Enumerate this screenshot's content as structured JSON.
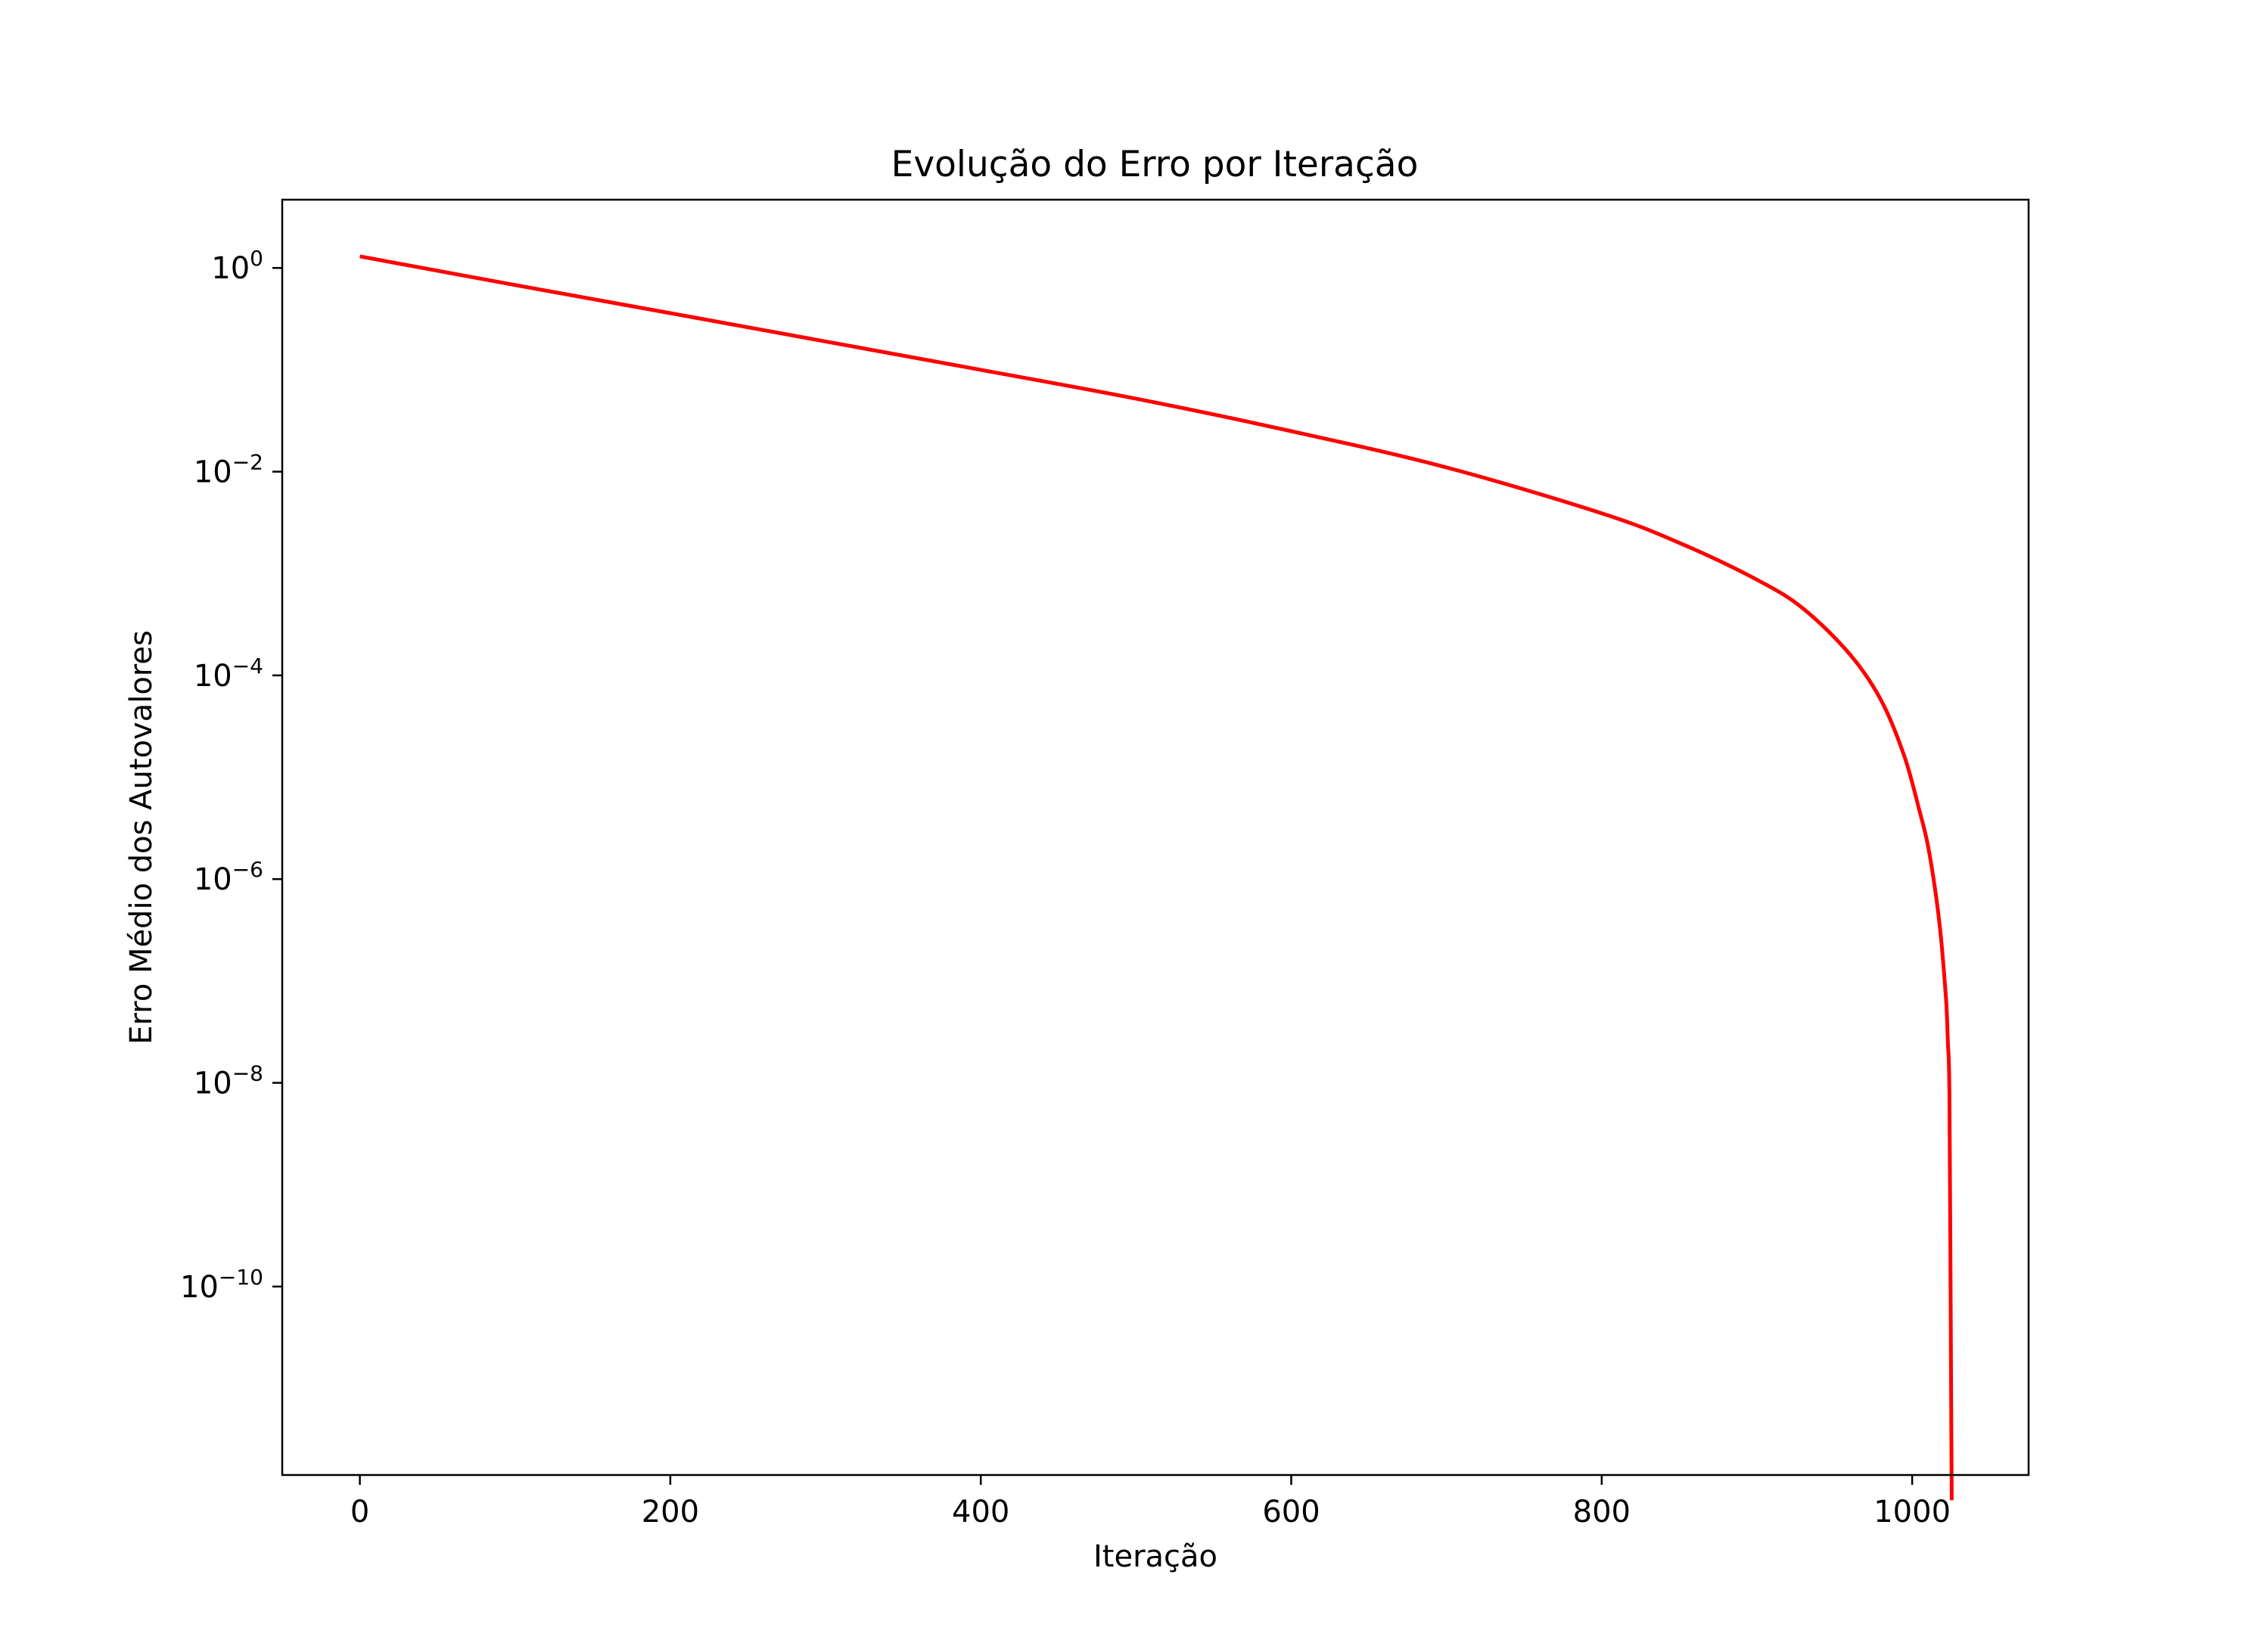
{
  "chart_data": {
    "type": "line",
    "title": "Evolução do Erro por Iteração",
    "xlabel": "Iteração",
    "ylabel": "Erro Médio dos Autovalores",
    "xlim": [
      -50,
      1075
    ],
    "ylim_log10": [
      -11.85,
      0.67
    ],
    "yscale": "log",
    "grid": false,
    "legend": "none",
    "x_ticks": [
      0,
      200,
      400,
      600,
      800,
      1000
    ],
    "x_tick_labels": [
      "0",
      "200",
      "400",
      "600",
      "800",
      "1000"
    ],
    "y_ticks_exponent": [
      0,
      -2,
      -4,
      -6,
      -8,
      -10
    ],
    "y_tick_base": "10",
    "y_tick_exponent_labels": [
      "0",
      "−2",
      "−4",
      "−6",
      "−8",
      "−10"
    ],
    "series": [
      {
        "color": "#ff0000",
        "x": [
          0,
          100,
          200,
          300,
          400,
          500,
          600,
          700,
          800,
          850,
          900,
          930,
          960,
          980,
          995,
          1005,
          1010,
          1015,
          1018,
          1020,
          1022,
          1023,
          1024,
          1025,
          1025.5
        ],
        "y": [
          1.3,
          0.68,
          0.36,
          0.19,
          0.1,
          0.052,
          0.025,
          0.011,
          0.0039,
          0.002,
          0.00087,
          0.00045,
          0.00016,
          5.7e-05,
          1.6e-05,
          4.5e-06,
          2.2e-06,
          7.5e-07,
          3.2e-07,
          1.5e-07,
          6e-08,
          2.5e-08,
          7.2e-09,
          1.8e-11,
          8e-13
        ]
      }
    ]
  }
}
